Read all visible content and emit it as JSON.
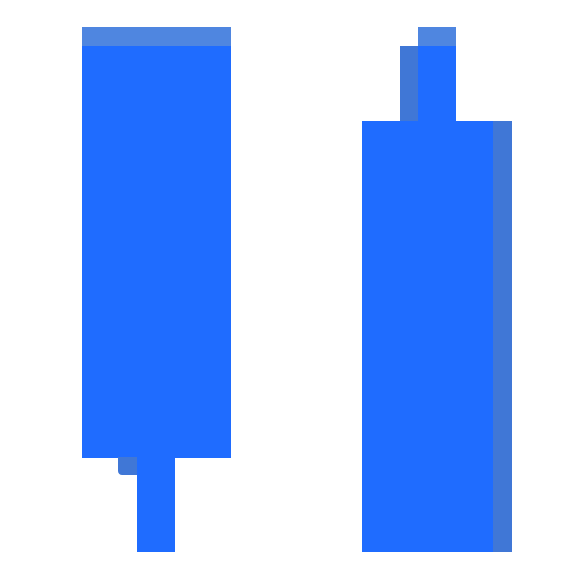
{
  "colors": {
    "accent": "#1f6cff",
    "cap": "#4f86e0",
    "shadow": "#4077d6",
    "background": "#ffffff"
  },
  "icons": {
    "left": "blue-tall-bar-icon-with-bottom-stem",
    "right": "blue-tall-bar-icon-with-top-stem"
  }
}
